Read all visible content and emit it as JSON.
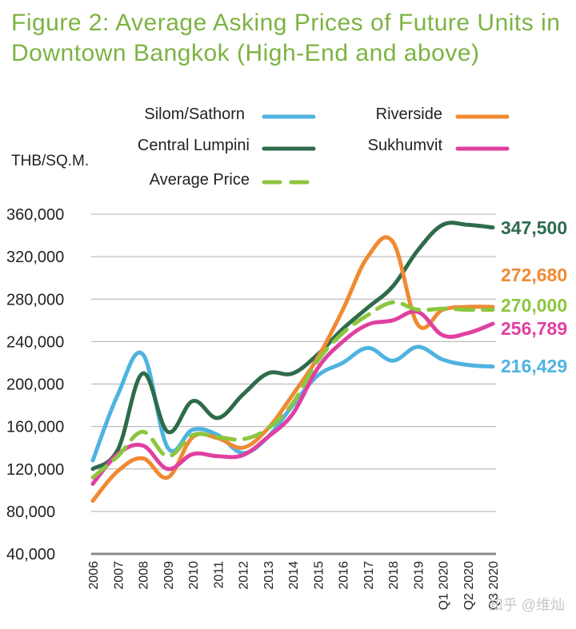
{
  "title": {
    "line1": "Figure 2: Average Asking Prices of Future Units in",
    "line2": "Downtown Bangkok (High-End and above)"
  },
  "watermark": "知乎 @维灿",
  "chart_data": {
    "type": "line",
    "ylabel": "THB/SQ.M.",
    "ylim": [
      40000,
      360000
    ],
    "yticks": [
      40000,
      80000,
      120000,
      160000,
      200000,
      240000,
      280000,
      320000,
      360000
    ],
    "ytick_labels": [
      "40,000",
      "80,000",
      "120,000",
      "160,000",
      "200,000",
      "240,000",
      "280,000",
      "320,000",
      "360,000"
    ],
    "categories": [
      "2006",
      "2007",
      "2008",
      "2009",
      "2010",
      "2011",
      "2012",
      "2013",
      "2014",
      "2015",
      "2016",
      "2017",
      "2018",
      "2019",
      "Q1 2020",
      "Q2 2020",
      "Q3 2020"
    ],
    "grid": true,
    "series": [
      {
        "name": "Silom/Sathorn",
        "color": "#4fb3e0",
        "dash": "solid",
        "values": [
          128000,
          190000,
          228000,
          140000,
          157000,
          152000,
          135000,
          150000,
          180000,
          208000,
          220000,
          234000,
          222000,
          235000,
          223000,
          218000,
          216429
        ],
        "end_label": "216,429"
      },
      {
        "name": "Central Lumpini",
        "color": "#2e6b4b",
        "dash": "solid",
        "values": [
          120000,
          138000,
          210000,
          155000,
          184000,
          168000,
          190000,
          210000,
          210000,
          228000,
          252000,
          272000,
          292000,
          326000,
          350000,
          350000,
          347500
        ],
        "end_label": "347,500"
      },
      {
        "name": "Riverside",
        "color": "#f08a32",
        "dash": "solid",
        "values": [
          90000,
          118000,
          130000,
          112000,
          150000,
          149000,
          140000,
          158000,
          190000,
          225000,
          270000,
          320000,
          334000,
          256000,
          270000,
          272680,
          272680
        ],
        "end_label": "272,680"
      },
      {
        "name": "Sukhumvit",
        "color": "#e040a0",
        "dash": "solid",
        "values": [
          106000,
          134000,
          142000,
          120000,
          134000,
          132000,
          133000,
          150000,
          172000,
          215000,
          240000,
          256000,
          260000,
          268000,
          246000,
          248000,
          256789
        ],
        "end_label": "256,789"
      },
      {
        "name": "Average Price",
        "color": "#8cc63f",
        "dash": "dashed",
        "values": [
          112000,
          132000,
          155000,
          132000,
          152000,
          150000,
          148000,
          158000,
          182000,
          222000,
          248000,
          265000,
          277000,
          270000,
          271000,
          270000,
          270000
        ],
        "end_label": "270,000"
      }
    ]
  }
}
